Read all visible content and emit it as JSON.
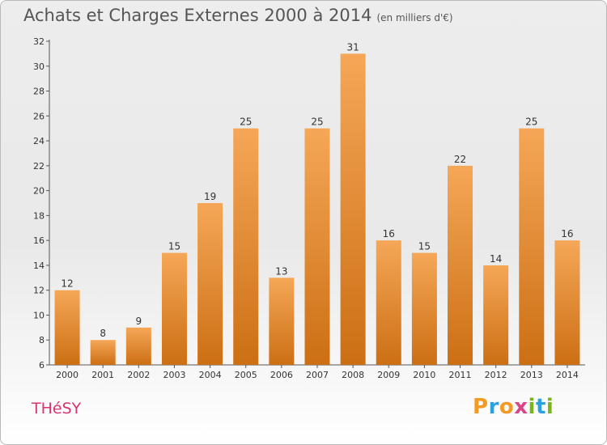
{
  "chart_data": {
    "type": "bar",
    "title": "Achats et Charges Externes 2000 à 2014",
    "subtitle": "(en milliers d'€)",
    "categories": [
      "2000",
      "2001",
      "2002",
      "2003",
      "2004",
      "2005",
      "2006",
      "2007",
      "2008",
      "2009",
      "2010",
      "2011",
      "2012",
      "2013",
      "2014"
    ],
    "values": [
      12,
      8,
      9,
      15,
      19,
      25,
      13,
      25,
      31,
      16,
      15,
      22,
      14,
      25,
      16
    ],
    "ylim": [
      6,
      32
    ],
    "yticks": [
      "6",
      "8",
      "10",
      "12",
      "14",
      "16",
      "18",
      "20",
      "22",
      "24",
      "26",
      "28",
      "30",
      "32"
    ],
    "xlabel": "",
    "ylabel": "",
    "grid": false,
    "bar_color_top": "#f5a757",
    "bar_color_bottom": "#cc6f14"
  },
  "footer": {
    "commune": "THéSY",
    "brand_letters": [
      "P",
      "r",
      "o",
      "x",
      "i",
      "t",
      "i"
    ],
    "brand_colors": [
      "#f39a25",
      "#2aa3dc",
      "#f39a25",
      "#d94588",
      "#7ab51d",
      "#2aa3dc",
      "#7ab51d"
    ]
  }
}
